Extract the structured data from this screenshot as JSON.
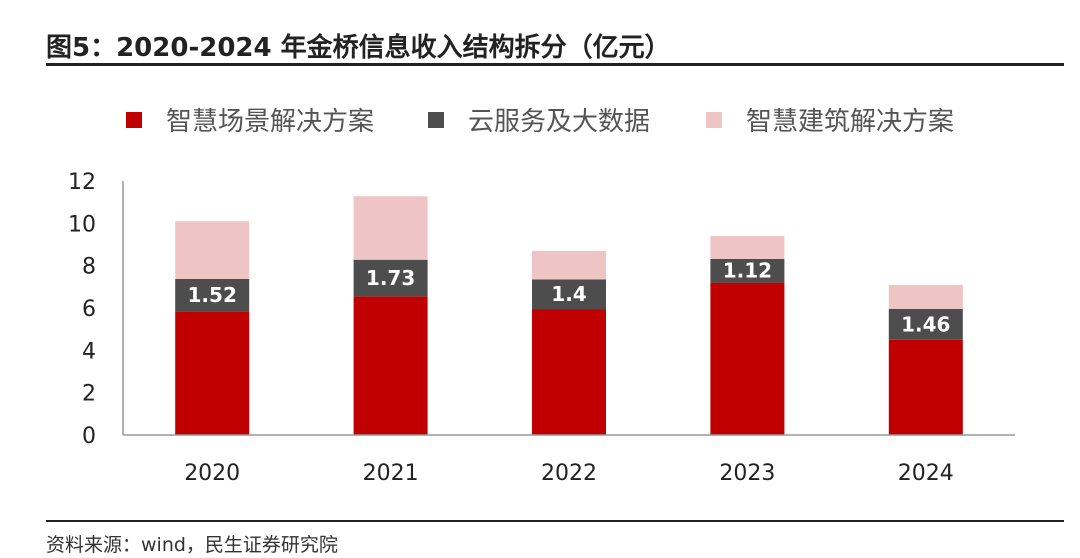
{
  "title": "图5：2020-2024 年金桥信息收入结构拆分（亿元）",
  "source": "资料来源：wind，民生证券研究院",
  "colors": {
    "smart_scene": "#C00000",
    "cloud_bigdata": "#4D4D4D",
    "smart_building": "#EEC4C4"
  },
  "chart_data": {
    "type": "bar",
    "stacked": true,
    "categories": [
      "2020",
      "2021",
      "2022",
      "2023",
      "2024"
    ],
    "series": [
      {
        "name": "智慧场景解决方案",
        "color": "#C00000",
        "values": [
          5.85,
          6.55,
          5.95,
          7.2,
          4.5
        ]
      },
      {
        "name": "云服务及大数据",
        "color": "#4D4D4D",
        "values": [
          1.52,
          1.73,
          1.4,
          1.12,
          1.46
        ],
        "labels": [
          "1.52",
          "1.73",
          "1.4",
          "1.12",
          "1.46"
        ]
      },
      {
        "name": "智慧建筑解决方案",
        "color": "#EEC4C4",
        "values": [
          2.73,
          3.0,
          1.35,
          1.08,
          1.13
        ]
      }
    ],
    "ylim": [
      0,
      12
    ],
    "yticks": [
      "0",
      "2",
      "4",
      "6",
      "8",
      "10",
      "12"
    ],
    "legend": "top",
    "grid": false
  }
}
